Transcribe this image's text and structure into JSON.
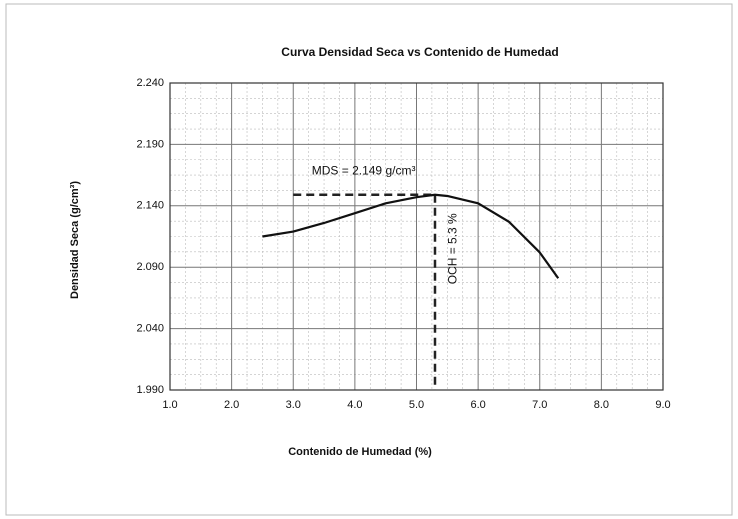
{
  "chart_data": {
    "type": "line",
    "title": "Curva Densidad Seca  vs Contenido de Humedad",
    "x_label": "Contenido de Humedad (%)",
    "y_label": "Densidad Seca  (g/cm³)",
    "x": [
      2.5,
      3.0,
      3.5,
      4.0,
      4.5,
      5.0,
      5.3,
      5.5,
      6.0,
      6.5,
      7.0,
      7.3
    ],
    "series": [
      {
        "color": "#111111",
        "values": [
          2.115,
          2.119,
          2.126,
          2.134,
          2.142,
          2.147,
          2.149,
          2.148,
          2.142,
          2.127,
          2.102,
          2.081
        ]
      }
    ],
    "xlim": [
      1.0,
      9.0
    ],
    "ylim": [
      1.99,
      2.24
    ],
    "xticks": [
      {
        "value": 1,
        "label": "1.0"
      },
      {
        "value": 2,
        "label": "2.0"
      },
      {
        "value": 3,
        "label": "3.0"
      },
      {
        "value": 4,
        "label": "4.0"
      },
      {
        "value": 5,
        "label": "5.0"
      },
      {
        "value": 6,
        "label": "6.0"
      },
      {
        "value": 7,
        "label": "7.0"
      },
      {
        "value": 8,
        "label": "8.0"
      },
      {
        "value": 9,
        "label": "9.0"
      }
    ],
    "yticks": [
      {
        "value": 1.99,
        "label": "1.990"
      },
      {
        "value": 2.04,
        "label": "2.040"
      },
      {
        "value": 2.09,
        "label": "2.090"
      },
      {
        "value": 2.14,
        "label": "2.140"
      },
      {
        "value": 2.19,
        "label": "2.190"
      },
      {
        "value": 2.24,
        "label": "2.240"
      }
    ],
    "grid": true,
    "minor_divisions": 4,
    "reference_lines": {
      "x": 5.3,
      "y": 2.149,
      "x_start": 3.0
    },
    "annotations": [
      "MDS = 2.149 g/cm³",
      "OCH = 5.3 %"
    ]
  }
}
